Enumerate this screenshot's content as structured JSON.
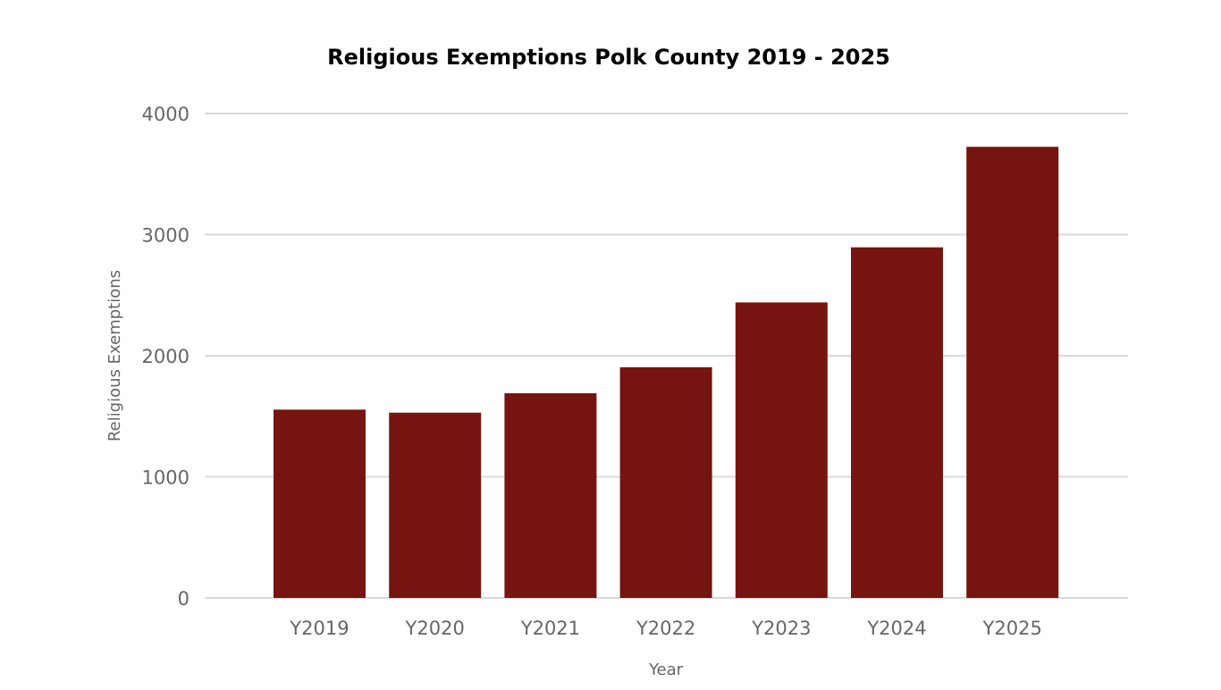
{
  "chart_data": {
    "type": "bar",
    "title": "Religious Exemptions Polk County 2019 - 2025",
    "xlabel": "Year",
    "ylabel": "Religious Exemptions",
    "categories": [
      "Y2019",
      "Y2020",
      "Y2021",
      "Y2022",
      "Y2023",
      "Y2024",
      "Y2025"
    ],
    "values": [
      1555,
      1530,
      1690,
      1905,
      2440,
      2895,
      3725
    ],
    "ylim": [
      0,
      4000
    ],
    "yticks": [
      "0",
      "1000",
      "2000",
      "3000",
      "4000"
    ],
    "bar_color": "#76150f",
    "grid": true,
    "legend": "none"
  }
}
